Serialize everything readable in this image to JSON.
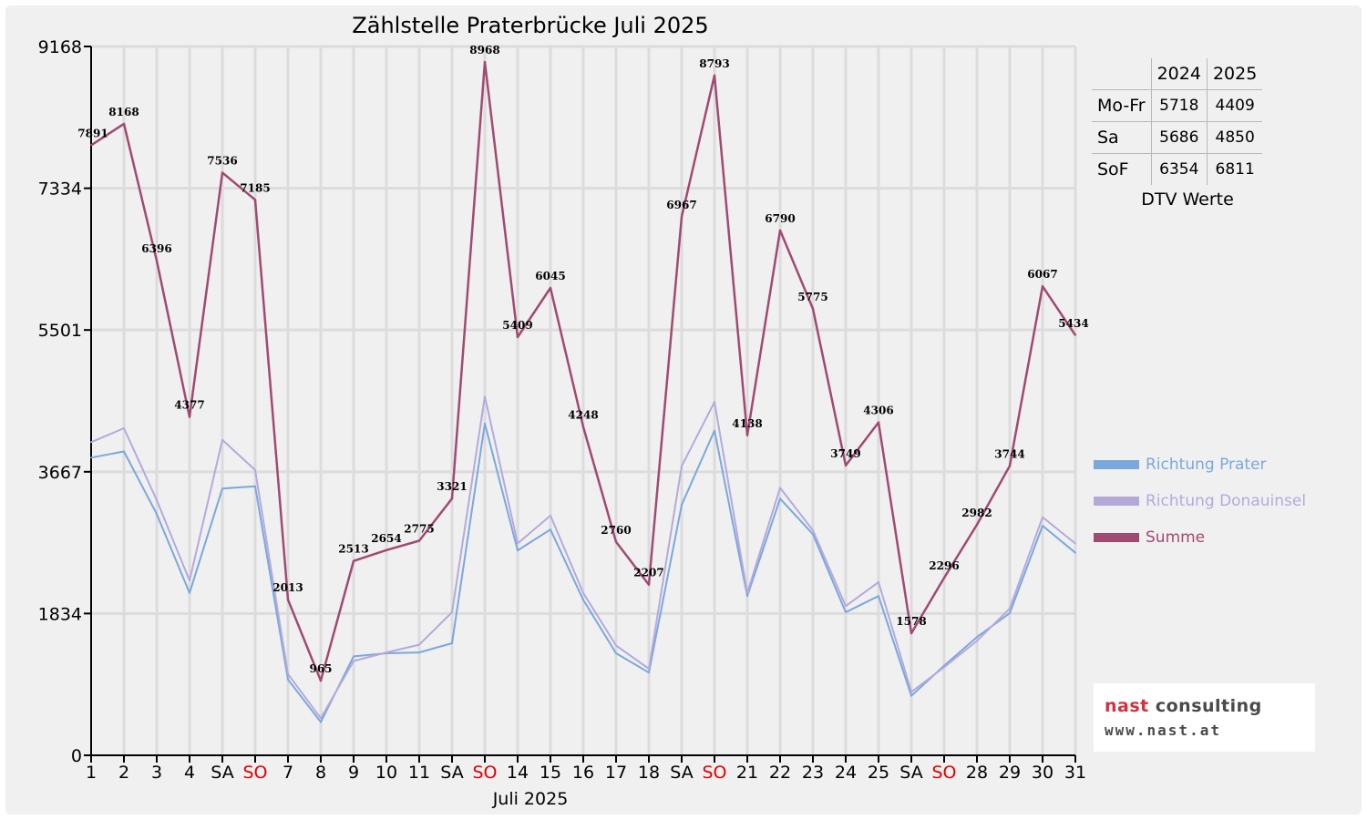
{
  "chart_data": {
    "type": "line",
    "title": "Zählstelle Praterbrücke Juli 2025",
    "xlabel": "Juli 2025",
    "ylabel": "",
    "ylim": [
      0,
      9168
    ],
    "yticks": [
      "0",
      "1834",
      "3667",
      "5501",
      "7334",
      "9168"
    ],
    "grid": true,
    "categories": [
      "1",
      "2",
      "3",
      "4",
      "SA",
      "SO",
      "7",
      "8",
      "9",
      "10",
      "11",
      "SA",
      "SO",
      "14",
      "15",
      "16",
      "17",
      "18",
      "SA",
      "SO",
      "21",
      "22",
      "23",
      "24",
      "25",
      "SA",
      "SO",
      "28",
      "29",
      "30",
      "31"
    ],
    "highlight_categories": [
      "SO"
    ],
    "series": [
      {
        "name": "Richtung Prater",
        "color": "#7aa8dc",
        "values": [
          3850,
          3930,
          3120,
          2100,
          3450,
          3480,
          980,
          430,
          1280,
          1320,
          1330,
          1450,
          4290,
          2650,
          2920,
          2010,
          1320,
          1070,
          3240,
          4200,
          2060,
          3320,
          2860,
          1850,
          2060,
          770,
          1160,
          1530,
          1840,
          2970,
          2620
        ]
      },
      {
        "name": "Richtung Donauinsel",
        "color": "#b5a9dc",
        "values": [
          4050,
          4230,
          3300,
          2260,
          4080,
          3690,
          1050,
          480,
          1220,
          1330,
          1430,
          1850,
          4640,
          2740,
          3100,
          2100,
          1420,
          1120,
          3740,
          4570,
          2100,
          3460,
          2910,
          1930,
          2240,
          820,
          1140,
          1480,
          1900,
          3080,
          2740
        ]
      },
      {
        "name": "Summe",
        "color": "#a04a72",
        "values": [
          7891,
          8168,
          6396,
          4377,
          7536,
          7185,
          2013,
          965,
          2513,
          2654,
          2775,
          3321,
          8968,
          5409,
          6045,
          4248,
          2760,
          2207,
          6967,
          8793,
          4138,
          6790,
          5775,
          3749,
          4306,
          1578,
          2296,
          2982,
          3744,
          6067,
          5434
        ]
      }
    ],
    "data_labels": [
      "7891",
      "8168",
      "6396",
      "4377",
      "7536",
      "7185",
      "2013",
      "965",
      "2513",
      "2654",
      "2775",
      "3321",
      "8968",
      "5409",
      "6045",
      "4248",
      "2760",
      "2207",
      "6967",
      "8793",
      "4138",
      "6790",
      "5775",
      "3749",
      "4306",
      "1578",
      "2296",
      "2982",
      "3744",
      "6067",
      "5434"
    ],
    "legend_position": "right"
  },
  "dtv_table": {
    "columns": [
      "",
      "2024",
      "2025"
    ],
    "rows": [
      {
        "label": "Mo-Fr",
        "v2024": "5718",
        "v2025": "4409"
      },
      {
        "label": "Sa",
        "v2024": "5686",
        "v2025": "4850"
      },
      {
        "label": "SoF",
        "v2024": "6354",
        "v2025": "6811"
      }
    ],
    "caption": "DTV Werte"
  },
  "logo": {
    "word1": "nast",
    "word2": " consulting",
    "url": "www.nast.at"
  }
}
